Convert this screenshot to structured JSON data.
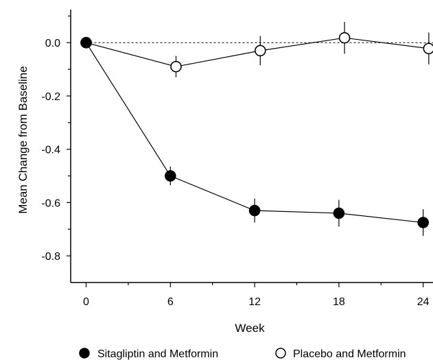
{
  "chart_data": {
    "type": "line",
    "title": "",
    "xlabel": "Week",
    "ylabel": "Mean Change from Baseline",
    "x": [
      0,
      6,
      12,
      18,
      24
    ],
    "x_ticks": [
      "0",
      "6",
      "12",
      "18",
      "24"
    ],
    "y_ticks": [
      "0.0",
      "-0.2",
      "-0.4",
      "-0.6",
      "-0.8"
    ],
    "y_tick_values": [
      0.0,
      -0.2,
      -0.4,
      -0.6,
      -0.8
    ],
    "xlim": [
      -1.1,
      24.7
    ],
    "ylim": [
      -0.9,
      0.16
    ],
    "reference_line": 0.0,
    "grid": false,
    "legend_position": "bottom",
    "series": [
      {
        "name": "Sitagliptin and Metformin",
        "marker": "filled-circle",
        "color": "#000000",
        "x": [
          0,
          6,
          12,
          18,
          24
        ],
        "values": [
          0.0,
          -0.5,
          -0.63,
          -0.64,
          -0.675
        ],
        "error": [
          0.0,
          0.035,
          0.045,
          0.05,
          0.05
        ]
      },
      {
        "name": "Placebo and Metformin",
        "marker": "open-circle",
        "color": "#000000",
        "x": [
          0,
          6.4,
          12.4,
          18.4,
          24.4
        ],
        "values": [
          0.0,
          -0.09,
          -0.03,
          0.018,
          -0.022
        ],
        "error": [
          0.0,
          0.04,
          0.055,
          0.06,
          0.06
        ]
      }
    ]
  }
}
